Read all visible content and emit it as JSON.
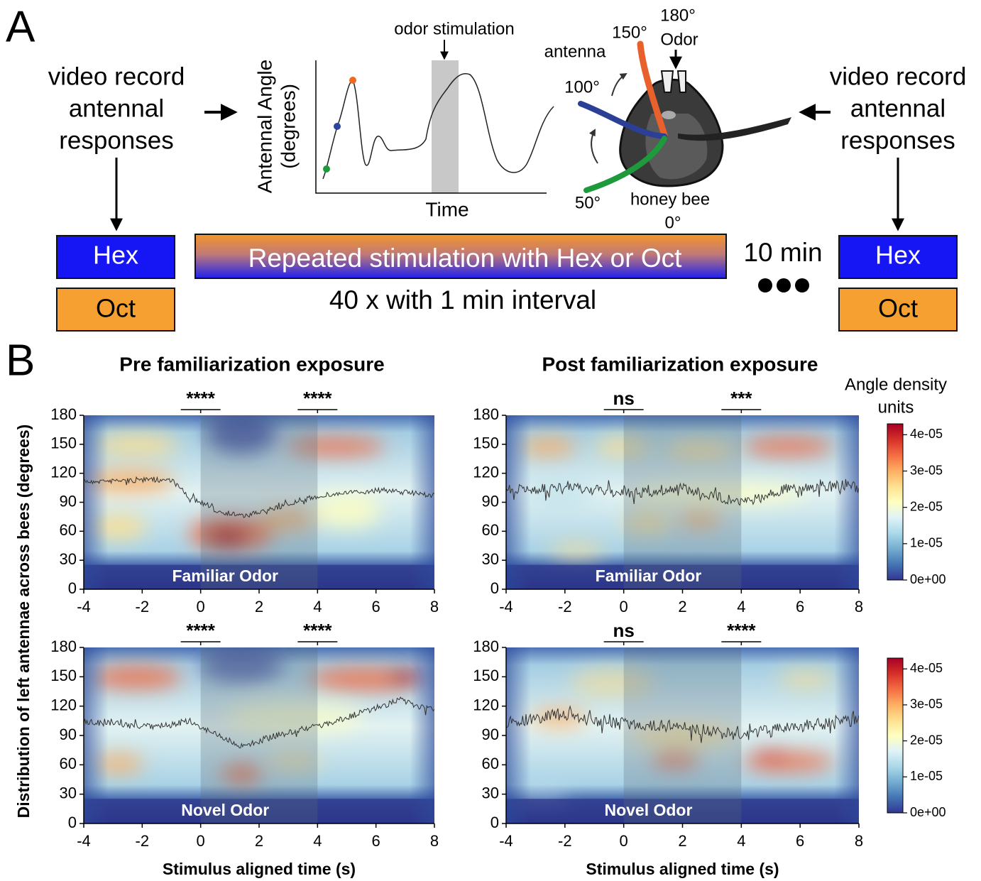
{
  "panel_a": {
    "label": "A",
    "left_text": [
      "video record",
      "antennal",
      "responses"
    ],
    "right_text": [
      "video record",
      "antennal",
      "responses"
    ],
    "left_boxes": [
      "Hex",
      "Oct"
    ],
    "right_boxes": [
      "Hex",
      "Oct"
    ],
    "protocol_bar": "Repeated stimulation with Hex or Oct",
    "protocol_note": "40 x with 1 min interval",
    "gap": "10 min",
    "schematic": {
      "annotation": "odor stimulation",
      "y_label": [
        "Antennal Angle",
        "(degrees)"
      ],
      "x_label": "Time"
    },
    "bee": {
      "odor_angle": "180°",
      "odor": "Odor",
      "angle_150": "150°",
      "antenna": "antenna",
      "angle_100": "100°",
      "angle_50": "50°",
      "species": "honey bee",
      "angle_0": "0°"
    }
  },
  "panel_b": {
    "label": "B",
    "columns": [
      "Pre familiarization exposure",
      "Post familiarization exposure"
    ],
    "y_label": "Distribution of left antennae across bees (degrees)",
    "colorbar_title": [
      "Angle density",
      "units"
    ]
  },
  "chart_data": [
    {
      "type": "heatmap",
      "annotation": "Familiar Odor",
      "xlim": [
        -4,
        8
      ],
      "xticks": [
        -4,
        -2,
        0,
        2,
        4,
        6,
        8
      ],
      "ylim": [
        0,
        180
      ],
      "yticks": [
        0,
        30,
        60,
        90,
        120,
        150,
        180
      ],
      "stimulus": [
        0,
        4
      ],
      "significance": [
        "****",
        "****"
      ]
    },
    {
      "type": "heatmap",
      "annotation": "Familiar Odor",
      "xlim": [
        -4,
        8
      ],
      "xticks": [
        -4,
        -2,
        0,
        2,
        4,
        6,
        8
      ],
      "ylim": [
        0,
        180
      ],
      "yticks": [
        0,
        30,
        60,
        90,
        120,
        150,
        180
      ],
      "stimulus": [
        0,
        4
      ],
      "significance": [
        "ns",
        "***"
      ],
      "colorbar": {
        "lim": [
          0,
          4.3e-05
        ],
        "ticks": [
          {
            "value": 0,
            "label": "0e+00"
          },
          {
            "value": 1e-05,
            "label": "1e-05"
          },
          {
            "value": 2e-05,
            "label": "2e-05"
          },
          {
            "value": 3e-05,
            "label": "3e-05"
          },
          {
            "value": 4e-05,
            "label": "4e-05"
          }
        ]
      }
    },
    {
      "type": "heatmap",
      "annotation": "Novel Odor",
      "x_label": "Stimulus aligned time (s)",
      "xlim": [
        -4,
        8
      ],
      "xticks": [
        -4,
        -2,
        0,
        2,
        4,
        6,
        8
      ],
      "ylim": [
        0,
        180
      ],
      "yticks": [
        0,
        30,
        60,
        90,
        120,
        150,
        180
      ],
      "stimulus": [
        0,
        4
      ],
      "significance": [
        "****",
        "****"
      ]
    },
    {
      "type": "heatmap",
      "annotation": "Novel Odor",
      "x_label": "Stimulus aligned time (s)",
      "xlim": [
        -4,
        8
      ],
      "xticks": [
        -4,
        -2,
        0,
        2,
        4,
        6,
        8
      ],
      "ylim": [
        0,
        180
      ],
      "yticks": [
        0,
        30,
        60,
        90,
        120,
        150,
        180
      ],
      "stimulus": [
        0,
        4
      ],
      "significance": [
        "ns",
        "****"
      ],
      "colorbar": {
        "lim": [
          0,
          4.3e-05
        ],
        "ticks": [
          {
            "value": 0,
            "label": "0e+00"
          },
          {
            "value": 1e-05,
            "label": "1e-05"
          },
          {
            "value": 2e-05,
            "label": "2e-05"
          },
          {
            "value": 3e-05,
            "label": "3e-05"
          },
          {
            "value": 4e-05,
            "label": "4e-05"
          }
        ]
      }
    }
  ]
}
